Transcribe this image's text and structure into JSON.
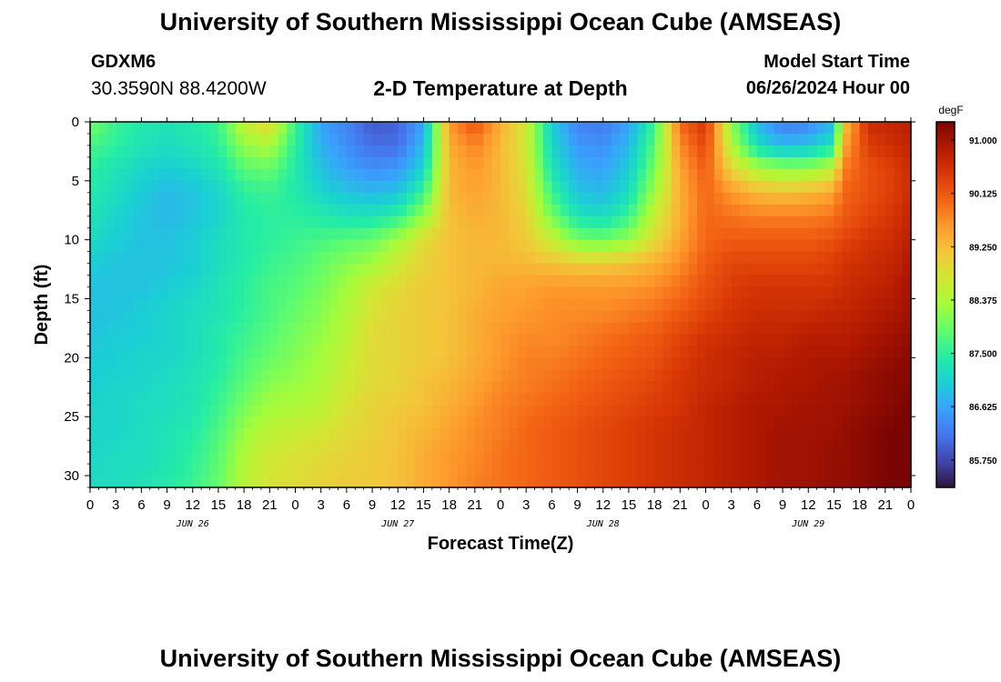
{
  "header": {
    "title": "University of Southern Mississippi Ocean Cube (AMSEAS)",
    "station": "GDXM6",
    "coordinates": "30.3590N  88.4200W",
    "plot_title": "2-D Temperature at Depth",
    "model_start_label": "Model Start Time",
    "model_start_value": "06/26/2024 Hour 00"
  },
  "footer": {
    "title": "University of Southern Mississippi Ocean Cube (AMSEAS)"
  },
  "colors": {
    "colormap": [
      "#30123b",
      "#4145ab",
      "#4675ed",
      "#39a2fc",
      "#1bcfd4",
      "#24eca6",
      "#61fc6c",
      "#a4fc3b",
      "#d1e834",
      "#f3c63a",
      "#fe9b2d",
      "#f36315",
      "#d93806",
      "#b11901",
      "#7a0403"
    ]
  },
  "chart_data": {
    "type": "heatmap",
    "xlabel": "Forecast Time(Z)",
    "ylabel": "Depth (ft)",
    "x_tick_labels": [
      "0",
      "3",
      "6",
      "9",
      "12",
      "15",
      "18",
      "21",
      "0",
      "3",
      "6",
      "9",
      "12",
      "15",
      "18",
      "21",
      "0",
      "3",
      "6",
      "9",
      "12",
      "15",
      "18",
      "21",
      "0",
      "3",
      "6",
      "9",
      "12",
      "15",
      "18",
      "21",
      "0"
    ],
    "x_range_hours": [
      0,
      96
    ],
    "date_labels": [
      {
        "label": "JUN 26",
        "hour": 12
      },
      {
        "label": "JUN 27",
        "hour": 36
      },
      {
        "label": "JUN 28",
        "hour": 60
      },
      {
        "label": "JUN 29",
        "hour": 84
      }
    ],
    "y_ticks": [
      0,
      5,
      10,
      15,
      20,
      25,
      30
    ],
    "y_range": [
      0,
      31
    ],
    "y_inverted": true,
    "colorbar": {
      "unit": "degF",
      "labels": [
        "91.000",
        "90.125",
        "89.250",
        "88.375",
        "87.500",
        "86.625",
        "85.750"
      ],
      "range": [
        85.3,
        91.3
      ]
    },
    "depths_ft": [
      0,
      2,
      4,
      6,
      8,
      10,
      12,
      14,
      16,
      18,
      20,
      22,
      24,
      26,
      28,
      31
    ],
    "hours": [
      0,
      3,
      6,
      9,
      12,
      15,
      18,
      21,
      24,
      27,
      30,
      33,
      36,
      39,
      42,
      45,
      48,
      51,
      54,
      57,
      60,
      63,
      66,
      69,
      72,
      75,
      78,
      81,
      84,
      87,
      88,
      91,
      94,
      96
    ],
    "values_degF": [
      [
        88.0,
        87.6,
        87.4,
        87.3,
        87.4,
        87.6,
        88.6,
        89.0,
        87.6,
        86.6,
        86.3,
        85.9,
        86.0,
        86.6,
        89.6,
        90.2,
        89.4,
        88.7,
        87.0,
        86.3,
        86.2,
        86.6,
        87.6,
        90.0,
        90.5,
        88.2,
        86.8,
        86.2,
        86.3,
        86.8,
        89.0,
        90.6,
        90.7,
        90.8
      ],
      [
        87.7,
        87.5,
        87.3,
        87.2,
        87.3,
        87.5,
        88.2,
        88.4,
        87.5,
        86.7,
        86.4,
        86.1,
        86.1,
        86.8,
        89.4,
        89.8,
        89.3,
        88.7,
        87.1,
        86.5,
        86.4,
        86.8,
        87.8,
        89.7,
        90.3,
        88.4,
        87.2,
        86.8,
        86.9,
        87.3,
        89.4,
        90.4,
        90.6,
        90.7
      ],
      [
        87.5,
        87.3,
        87.1,
        87.0,
        87.1,
        87.3,
        87.8,
        87.9,
        87.4,
        86.9,
        86.6,
        86.4,
        86.5,
        87.1,
        89.3,
        89.6,
        89.3,
        88.8,
        87.3,
        86.7,
        86.6,
        87.0,
        88.0,
        89.5,
        90.1,
        89.0,
        88.4,
        88.2,
        88.2,
        88.6,
        89.8,
        90.2,
        90.4,
        90.6
      ],
      [
        87.4,
        87.2,
        87.0,
        86.8,
        86.9,
        87.1,
        87.5,
        87.6,
        87.4,
        87.1,
        86.9,
        86.8,
        86.9,
        87.6,
        89.3,
        89.5,
        89.3,
        88.9,
        87.6,
        86.9,
        86.8,
        87.2,
        88.3,
        89.4,
        90.0,
        89.6,
        89.3,
        89.2,
        89.3,
        89.5,
        90.0,
        90.2,
        90.4,
        90.6
      ],
      [
        87.3,
        87.1,
        86.9,
        86.8,
        86.9,
        87.1,
        87.4,
        87.5,
        87.5,
        87.4,
        87.3,
        87.3,
        87.5,
        88.2,
        89.2,
        89.4,
        89.3,
        89.0,
        88.0,
        87.3,
        87.2,
        87.6,
        88.6,
        89.4,
        90.0,
        89.9,
        89.8,
        89.8,
        89.8,
        89.9,
        90.1,
        90.3,
        90.5,
        90.7
      ],
      [
        87.2,
        87.0,
        86.9,
        86.9,
        87.0,
        87.2,
        87.4,
        87.5,
        87.6,
        87.7,
        87.8,
        87.9,
        88.3,
        88.9,
        89.2,
        89.3,
        89.3,
        89.1,
        88.6,
        88.0,
        87.9,
        88.2,
        88.9,
        89.5,
        90.0,
        90.1,
        90.1,
        90.1,
        90.1,
        90.2,
        90.3,
        90.5,
        90.6,
        90.8
      ],
      [
        87.0,
        86.9,
        86.9,
        86.9,
        87.0,
        87.2,
        87.4,
        87.6,
        87.7,
        87.9,
        88.1,
        88.3,
        88.7,
        89.0,
        89.2,
        89.3,
        89.3,
        89.3,
        89.2,
        89.1,
        89.1,
        89.2,
        89.4,
        89.7,
        90.1,
        90.3,
        90.3,
        90.3,
        90.3,
        90.4,
        90.5,
        90.6,
        90.7,
        90.9
      ],
      [
        86.9,
        86.9,
        86.9,
        87.0,
        87.1,
        87.3,
        87.5,
        87.7,
        87.8,
        88.0,
        88.3,
        88.7,
        88.9,
        89.1,
        89.2,
        89.3,
        89.5,
        89.5,
        89.6,
        89.6,
        89.6,
        89.6,
        89.7,
        89.9,
        90.2,
        90.4,
        90.5,
        90.5,
        90.5,
        90.5,
        90.6,
        90.7,
        90.8,
        91.0
      ],
      [
        86.9,
        86.9,
        87.0,
        87.1,
        87.2,
        87.3,
        87.5,
        87.7,
        87.9,
        88.1,
        88.4,
        88.8,
        89.0,
        89.1,
        89.2,
        89.4,
        89.5,
        89.6,
        89.7,
        89.7,
        89.7,
        89.8,
        89.9,
        90.1,
        90.3,
        90.5,
        90.6,
        90.6,
        90.6,
        90.7,
        90.7,
        90.8,
        90.9,
        91.0
      ],
      [
        86.9,
        87.0,
        87.0,
        87.1,
        87.2,
        87.4,
        87.6,
        87.8,
        88.0,
        88.2,
        88.5,
        88.9,
        89.0,
        89.1,
        89.2,
        89.4,
        89.6,
        89.7,
        89.7,
        89.8,
        89.9,
        90.0,
        90.1,
        90.3,
        90.5,
        90.6,
        90.7,
        90.7,
        90.8,
        90.8,
        90.8,
        90.9,
        91.0,
        91.1
      ],
      [
        87.0,
        87.0,
        87.1,
        87.1,
        87.2,
        87.4,
        87.7,
        87.9,
        88.1,
        88.3,
        88.6,
        88.9,
        89.0,
        89.1,
        89.2,
        89.4,
        89.6,
        89.8,
        89.8,
        89.9,
        90.0,
        90.1,
        90.2,
        90.4,
        90.6,
        90.7,
        90.8,
        90.8,
        90.9,
        90.9,
        90.9,
        91.0,
        91.1,
        91.2
      ],
      [
        87.0,
        87.1,
        87.1,
        87.2,
        87.3,
        87.5,
        87.8,
        88.1,
        88.2,
        88.4,
        88.7,
        88.9,
        89.0,
        89.2,
        89.3,
        89.5,
        89.7,
        89.8,
        89.9,
        90.0,
        90.1,
        90.2,
        90.3,
        90.5,
        90.6,
        90.7,
        90.8,
        90.9,
        90.9,
        91.0,
        91.0,
        91.1,
        91.2,
        91.2
      ],
      [
        87.1,
        87.1,
        87.2,
        87.2,
        87.3,
        87.6,
        88.0,
        88.3,
        88.4,
        88.5,
        88.8,
        89.0,
        89.1,
        89.2,
        89.4,
        89.6,
        89.8,
        89.9,
        90.0,
        90.1,
        90.2,
        90.3,
        90.4,
        90.5,
        90.7,
        90.8,
        90.9,
        90.9,
        91.0,
        91.0,
        91.0,
        91.1,
        91.2,
        91.3
      ],
      [
        87.1,
        87.1,
        87.2,
        87.3,
        87.4,
        87.7,
        88.2,
        88.5,
        88.6,
        88.7,
        88.9,
        89.0,
        89.2,
        89.3,
        89.5,
        89.7,
        89.8,
        90.0,
        90.1,
        90.2,
        90.3,
        90.4,
        90.5,
        90.6,
        90.7,
        90.8,
        90.9,
        91.0,
        91.0,
        91.0,
        91.1,
        91.2,
        91.3,
        91.3
      ],
      [
        87.1,
        87.2,
        87.2,
        87.3,
        87.5,
        87.8,
        88.4,
        88.7,
        88.8,
        88.9,
        89.0,
        89.1,
        89.2,
        89.4,
        89.6,
        89.7,
        89.9,
        90.0,
        90.1,
        90.2,
        90.3,
        90.4,
        90.5,
        90.6,
        90.7,
        90.8,
        90.9,
        91.0,
        91.0,
        91.1,
        91.1,
        91.2,
        91.3,
        91.3
      ],
      [
        87.2,
        87.2,
        87.3,
        87.4,
        87.6,
        87.9,
        88.5,
        88.8,
        88.9,
        89.0,
        89.1,
        89.1,
        89.2,
        89.4,
        89.6,
        89.8,
        89.9,
        90.0,
        90.1,
        90.2,
        90.3,
        90.4,
        90.5,
        90.6,
        90.7,
        90.8,
        90.9,
        91.0,
        91.0,
        91.1,
        91.1,
        91.2,
        91.3,
        91.3
      ]
    ]
  }
}
